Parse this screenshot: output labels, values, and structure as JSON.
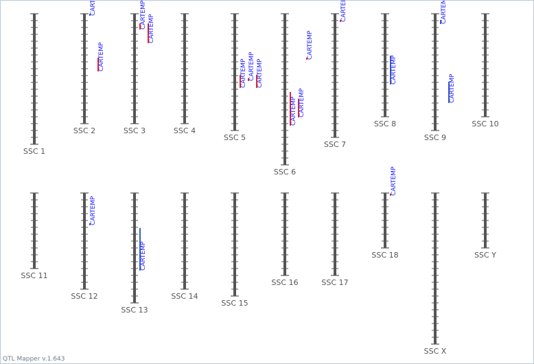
{
  "app": {
    "version_text": "QTL Mapper v.1.643"
  },
  "colors": {
    "chromosome": "#555555",
    "tick": "#555555",
    "label": "#555555",
    "qtl_text": "#1a1aff",
    "qtl_red": "#e8262c",
    "qtl_blue": "#3b5fc0"
  },
  "chromosomes": [
    {
      "name": "SSC 1",
      "length": 19
    },
    {
      "name": "SSC 2",
      "length": 16
    },
    {
      "name": "SSC 3",
      "length": 16
    },
    {
      "name": "SSC 4",
      "length": 16
    },
    {
      "name": "SSC 5",
      "length": 17
    },
    {
      "name": "SSC 6",
      "length": 22
    },
    {
      "name": "SSC 7",
      "length": 18
    },
    {
      "name": "SSC 8",
      "length": 15
    },
    {
      "name": "SSC 9",
      "length": 17
    },
    {
      "name": "SSC 10",
      "length": 15
    },
    {
      "name": "SSC 11",
      "length": 11
    },
    {
      "name": "SSC 12",
      "length": 14
    },
    {
      "name": "SSC 13",
      "length": 16
    },
    {
      "name": "SSC 14",
      "length": 14
    },
    {
      "name": "SSC 15",
      "length": 15
    },
    {
      "name": "SSC 16",
      "length": 12
    },
    {
      "name": "SSC 17",
      "length": 12
    },
    {
      "name": "SSC 18",
      "length": 8
    },
    {
      "name": "SSC X",
      "length": 22
    },
    {
      "name": "SSC Y",
      "length": 8
    }
  ],
  "qtls": [
    {
      "chr": 2,
      "label": "CARTEMP",
      "col": 0,
      "start": 0,
      "end": 0.3,
      "color": "blue"
    },
    {
      "chr": 2,
      "label": "CARTEMP",
      "col": 1,
      "start": 6.4,
      "end": 8.4,
      "color": "red"
    },
    {
      "chr": 3,
      "label": "CARTEMP",
      "col": 0,
      "start": 1.4,
      "end": 2.3,
      "color": "red"
    },
    {
      "chr": 3,
      "label": "CARTEMP",
      "col": 1,
      "start": 1.4,
      "end": 4.3,
      "color": "red"
    },
    {
      "chr": 5,
      "label": "CARTEMP",
      "col": 0,
      "start": 8.9,
      "end": 10.8,
      "color": "red"
    },
    {
      "chr": 5,
      "label": "CARTEMP",
      "col": 1,
      "start": 9.4,
      "end": 9.8,
      "color": "red"
    },
    {
      "chr": 5,
      "label": "CARTEMP",
      "col": 2,
      "start": 8.9,
      "end": 10.8,
      "color": "red"
    },
    {
      "chr": 6,
      "label": "CARTEMP",
      "col": 2,
      "start": 6.4,
      "end": 6.7,
      "color": "red"
    },
    {
      "chr": 6,
      "label": "CARTEMP",
      "col": 0,
      "start": 11.4,
      "end": 16.3,
      "color": "red"
    },
    {
      "chr": 6,
      "label": "CARTEMP",
      "col": 1,
      "start": 12.4,
      "end": 15.1,
      "color": "red"
    },
    {
      "chr": 7,
      "label": "CARTEMP",
      "col": 0,
      "start": 0.9,
      "end": 1.2,
      "color": "red"
    },
    {
      "chr": 8,
      "label": "CARTEMP",
      "col": 0,
      "start": 6.1,
      "end": 10.3,
      "color": "blue"
    },
    {
      "chr": 9,
      "label": "CARTEMP",
      "col": 0,
      "start": 0.9,
      "end": 1.5,
      "color": "blue"
    },
    {
      "chr": 9,
      "label": "CARTEMP",
      "col": 1,
      "start": 9.9,
      "end": 13.0,
      "color": "blue"
    },
    {
      "chr": 12,
      "label": "CARTEMP",
      "col": 0,
      "start": 4.4,
      "end": 4.7,
      "color": "blue"
    },
    {
      "chr": 13,
      "label": "CARTEMP",
      "col": 0,
      "start": 5.1,
      "end": 11.3,
      "color": "blue"
    },
    {
      "chr": 18,
      "label": "CARTEMP",
      "col": 0,
      "start": 0.1,
      "end": 0.4,
      "color": "red"
    }
  ]
}
